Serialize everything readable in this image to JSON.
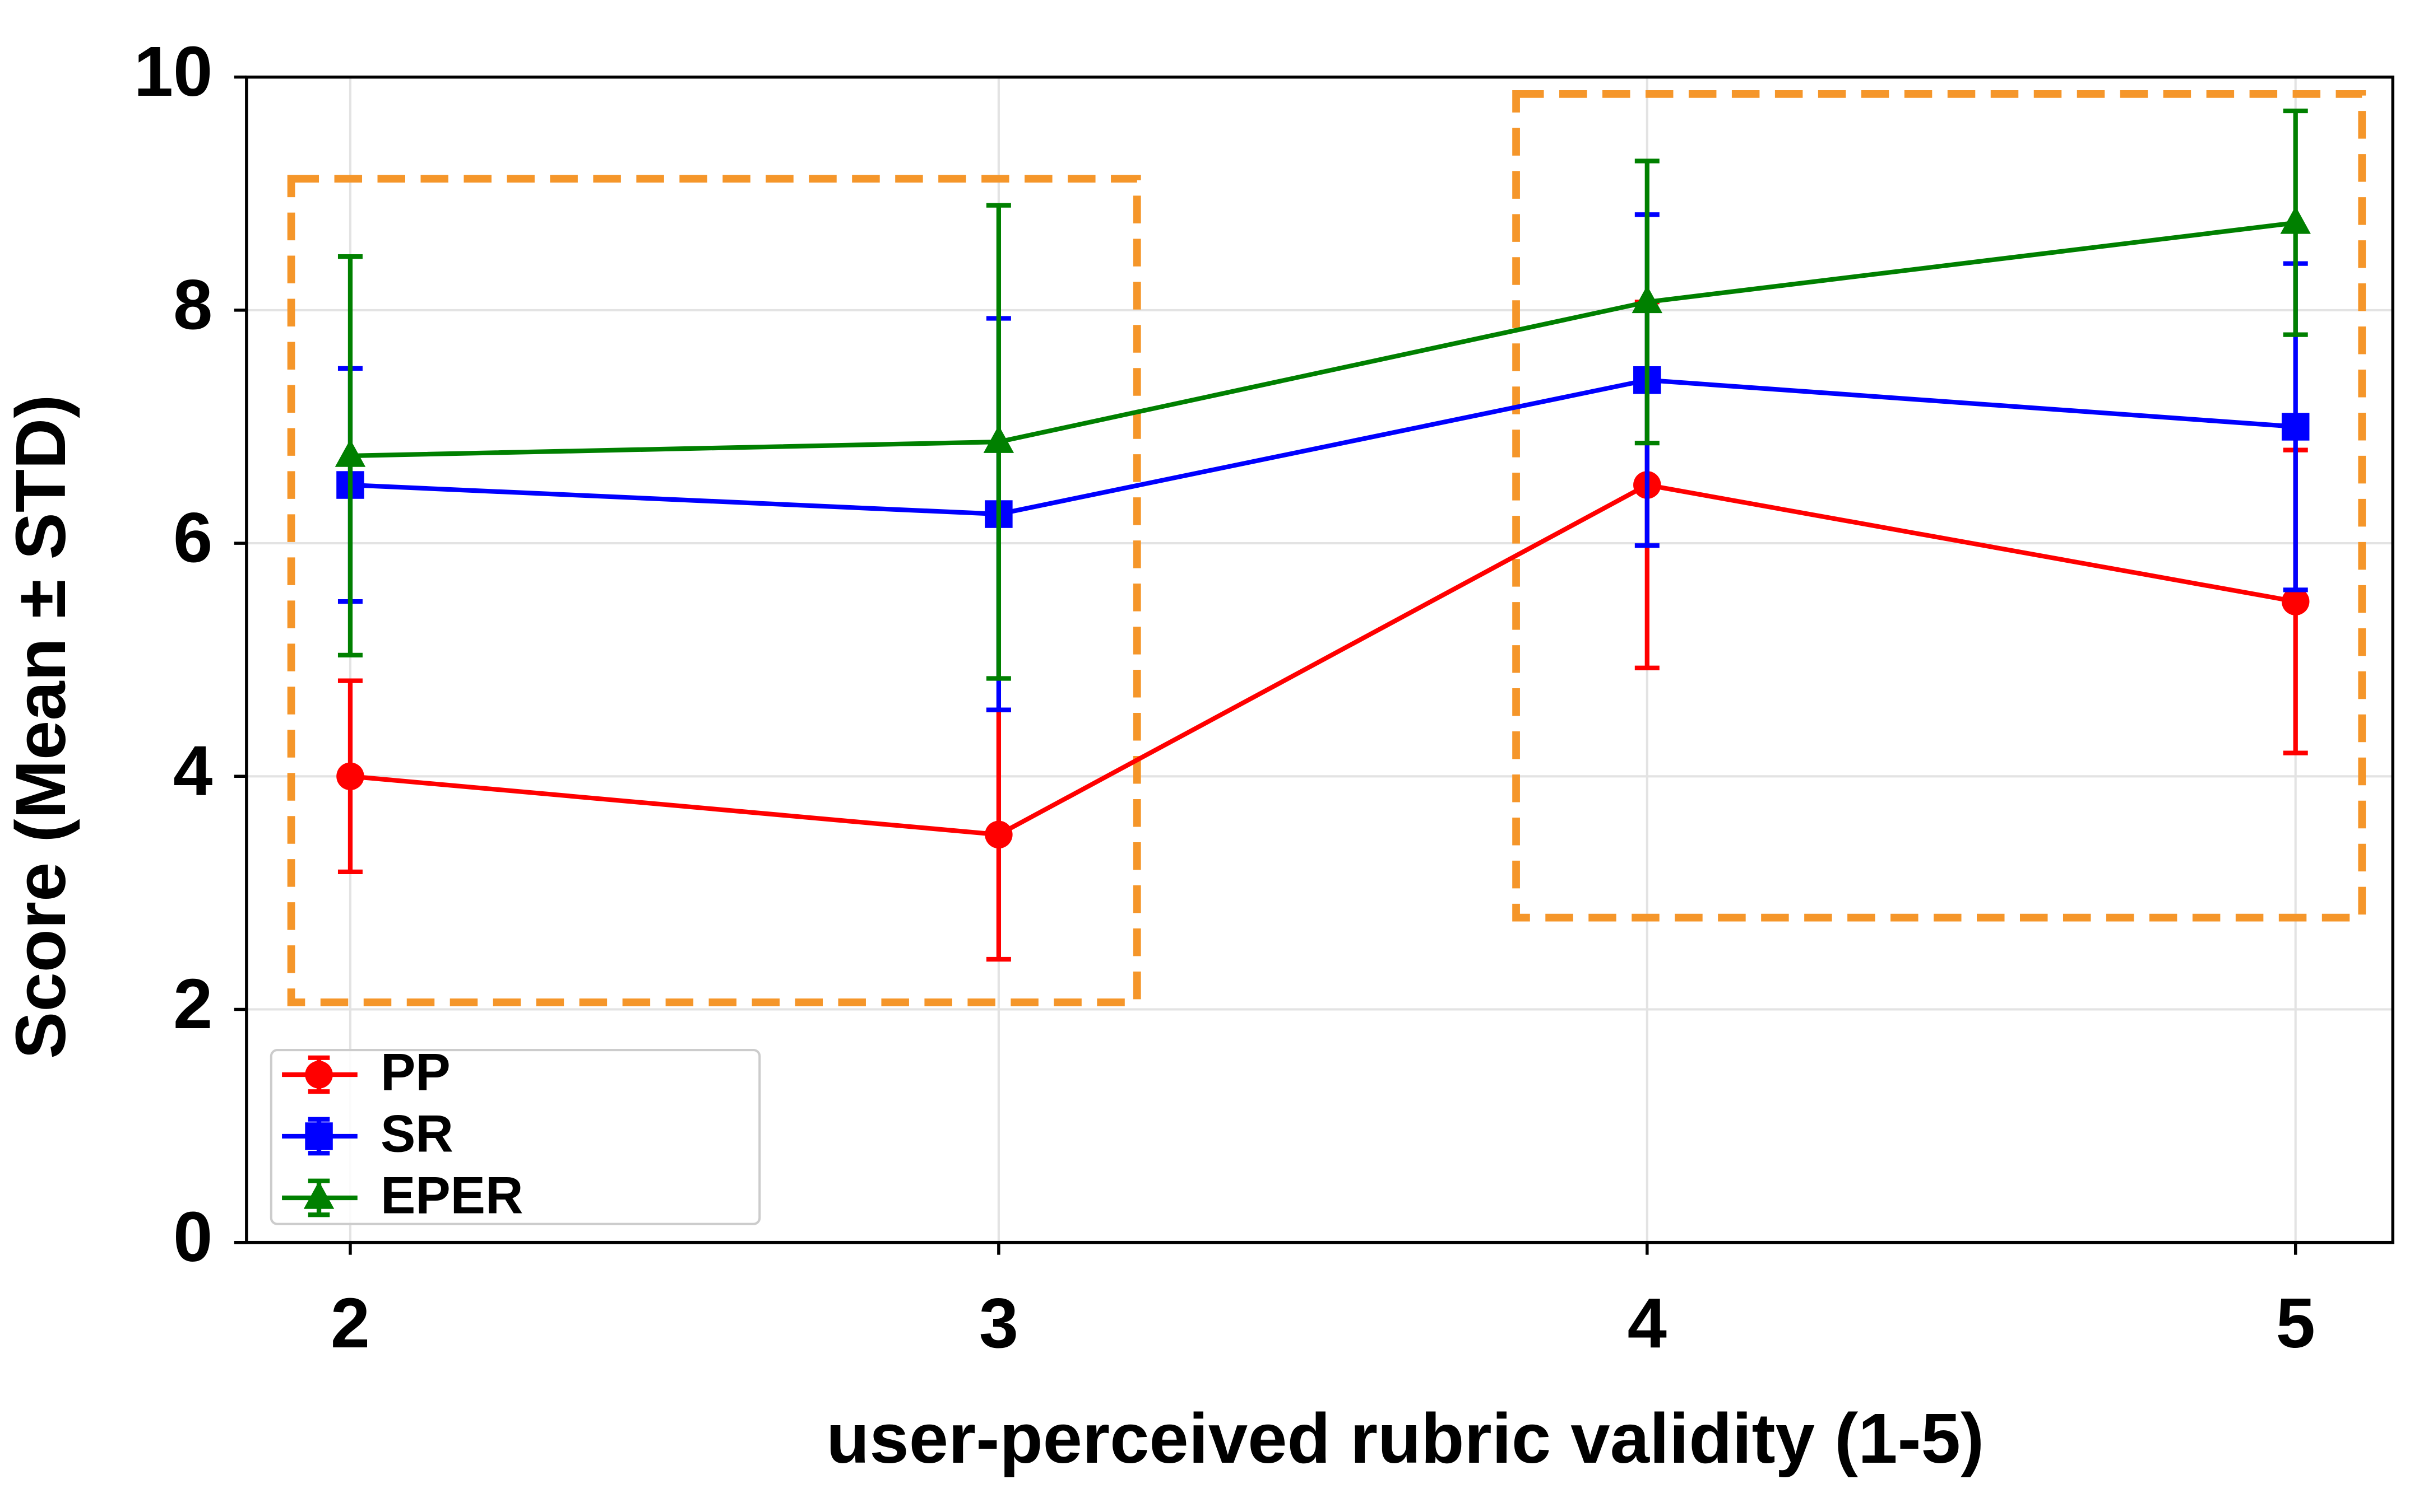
{
  "chart_data": {
    "type": "line",
    "x_label": "user-perceived rubric validity (1-5)",
    "y_label": "Score (Mean ± STD)",
    "x": [
      2,
      3,
      4,
      5
    ],
    "xlim": [
      1.84,
      5.15
    ],
    "xticks": [
      2,
      3,
      4,
      5
    ],
    "ylim": [
      0,
      10
    ],
    "yticks": [
      0,
      2,
      4,
      6,
      8,
      10
    ],
    "grid": true,
    "legend": "lower left",
    "series": [
      {
        "name": "PP",
        "color": "#ff0000",
        "marker": "circle",
        "values": [
          4.0,
          3.5,
          6.5,
          5.5
        ],
        "errors": [
          0.82,
          1.07,
          1.57,
          1.3
        ]
      },
      {
        "name": "SR",
        "color": "#0000ff",
        "marker": "square",
        "values": [
          6.5,
          6.25,
          7.4,
          7.0
        ],
        "errors": [
          1.0,
          1.68,
          1.42,
          1.4
        ]
      },
      {
        "name": "EPER",
        "color": "#008000",
        "marker": "triangle",
        "values": [
          6.75,
          6.87,
          8.07,
          8.75
        ],
        "errors": [
          1.71,
          2.03,
          1.21,
          0.96
        ]
      }
    ]
  }
}
